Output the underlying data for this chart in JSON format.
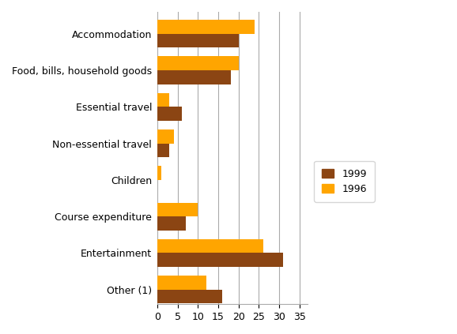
{
  "categories": [
    "Accommodation",
    "Food, bills, household goods",
    "Essential travel",
    "Non-essential travel",
    "Children",
    "Course expenditure",
    "Entertainment",
    "Other (1)"
  ],
  "values_1999": [
    20,
    18,
    6,
    3,
    0,
    7,
    31,
    16
  ],
  "values_1996": [
    24,
    20,
    3,
    4,
    1,
    10,
    26,
    12
  ],
  "color_1999": "#8B4513",
  "color_1996": "#FFA500",
  "legend_labels": [
    "1999",
    "1996"
  ],
  "xlim": [
    0,
    37
  ],
  "xticks": [
    0,
    5,
    10,
    15,
    20,
    25,
    30,
    35
  ],
  "bar_height": 0.38,
  "figsize": [
    5.78,
    4.23
  ],
  "dpi": 100,
  "grid_color": "#aaaaaa",
  "background_color": "#ffffff"
}
